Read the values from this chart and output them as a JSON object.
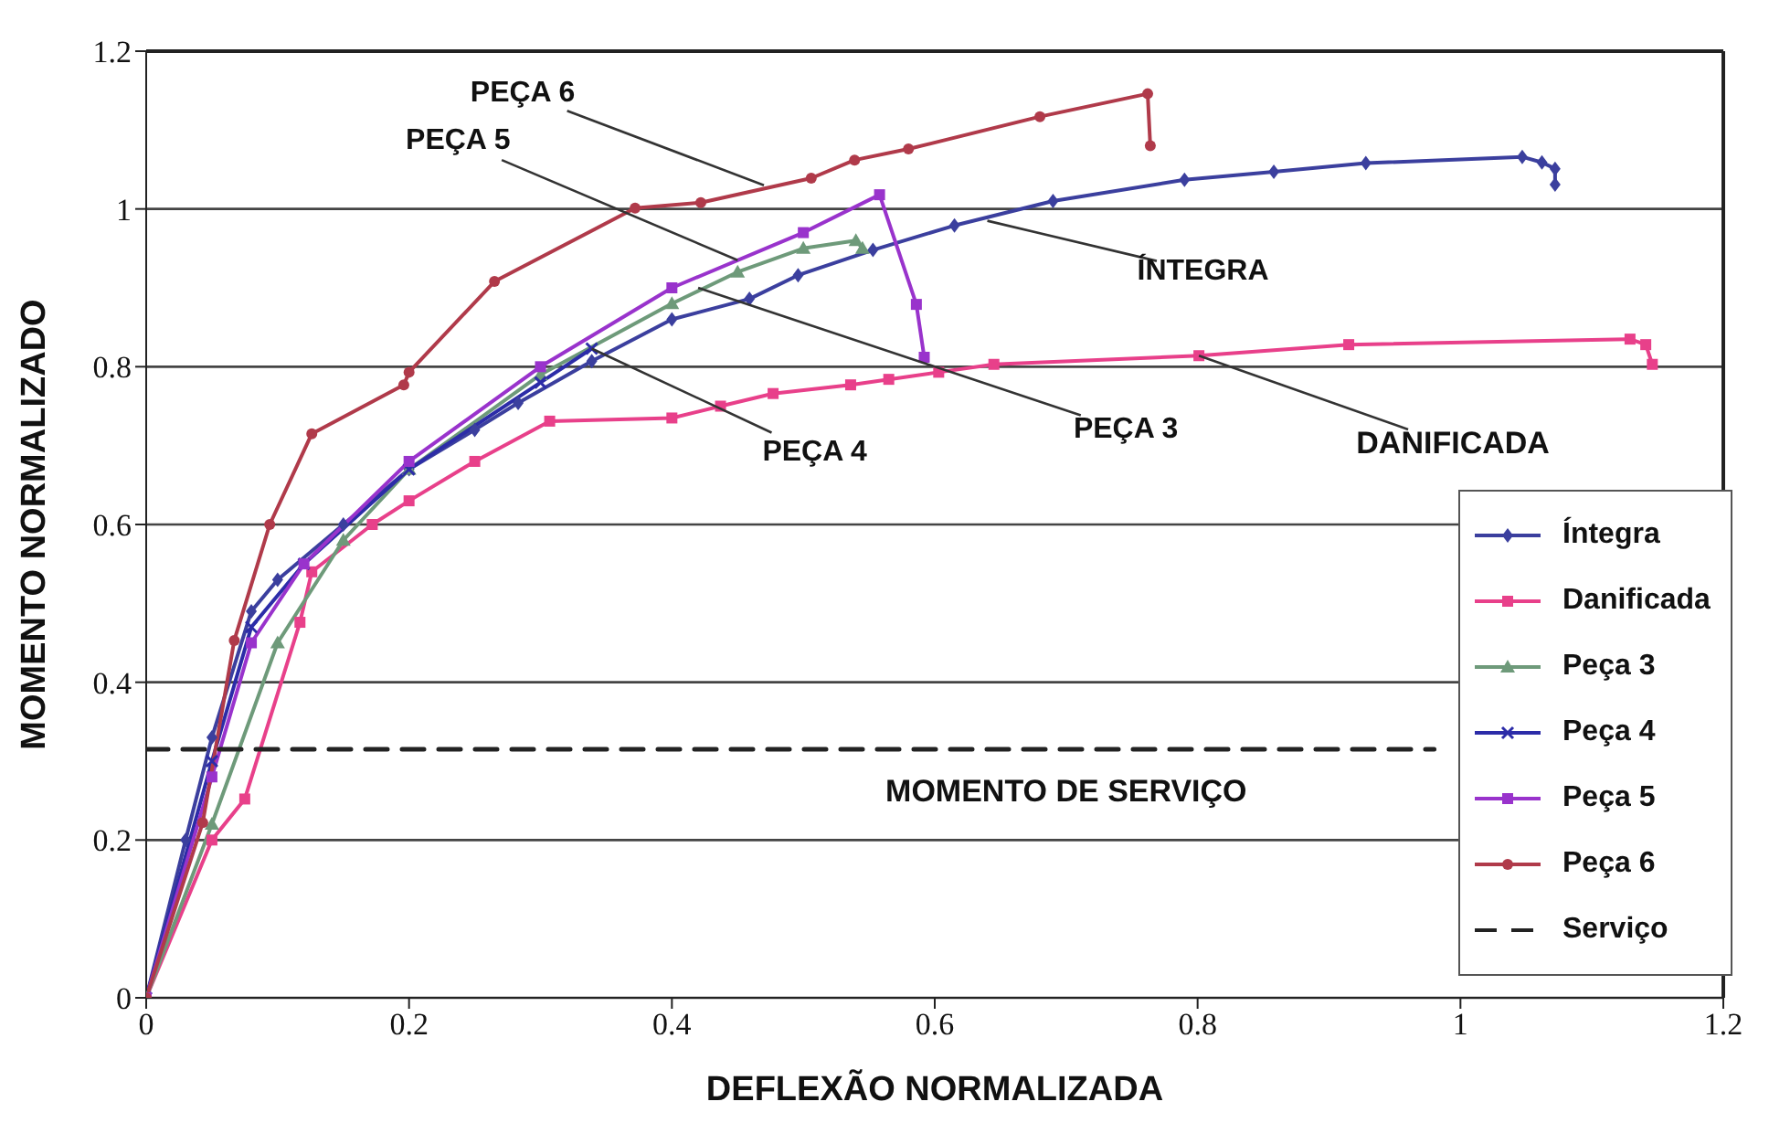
{
  "chart_data": {
    "type": "line",
    "xlabel": "DEFLEXÃO NORMALIZADA",
    "ylabel": "MOMENTO NORMALIZADO",
    "xlim": [
      0,
      1.2
    ],
    "xticks": [
      0,
      0.2,
      0.4,
      0.6,
      0.8,
      1,
      1.2
    ],
    "ylim": [
      0,
      1.2
    ],
    "yticks": [
      0,
      0.2,
      0.4,
      0.6,
      0.8,
      1,
      1.2
    ],
    "grid": "y",
    "legend": "bottom right",
    "series": [
      {
        "name": "Íntegra",
        "color": "#3b3f9e",
        "marker": "diamond",
        "x": [
          0,
          0.03,
          0.05,
          0.08,
          0.1,
          0.15,
          0.2,
          0.25,
          0.283,
          0.339,
          0.4,
          0.459,
          0.496,
          0.553,
          0.615,
          0.69,
          0.79,
          0.858,
          0.928,
          1.047,
          1.062,
          1.072,
          1.072
        ],
        "values": [
          0,
          0.2,
          0.33,
          0.49,
          0.53,
          0.6,
          0.67,
          0.72,
          0.754,
          0.807,
          0.86,
          0.886,
          0.916,
          0.948,
          0.979,
          1.01,
          1.037,
          1.047,
          1.058,
          1.066,
          1.059,
          1.051,
          1.031
        ]
      },
      {
        "name": "Danificada",
        "color": "#e8408a",
        "marker": "square",
        "x": [
          0,
          0.05,
          0.075,
          0.117,
          0.126,
          0.172,
          0.2,
          0.25,
          0.307,
          0.4,
          0.437,
          0.477,
          0.536,
          0.565,
          0.603,
          0.645,
          0.801,
          0.915,
          1.129,
          1.141,
          1.146
        ],
        "values": [
          0,
          0.2,
          0.252,
          0.476,
          0.54,
          0.6,
          0.63,
          0.68,
          0.731,
          0.735,
          0.75,
          0.766,
          0.777,
          0.784,
          0.793,
          0.803,
          0.814,
          0.828,
          0.835,
          0.828,
          0.803
        ]
      },
      {
        "name": "Peça 3",
        "color": "#6e9a7a",
        "marker": "triangle",
        "x": [
          0,
          0.05,
          0.1,
          0.15,
          0.2,
          0.3,
          0.4,
          0.45,
          0.5,
          0.54,
          0.545
        ],
        "values": [
          0,
          0.22,
          0.45,
          0.58,
          0.67,
          0.79,
          0.88,
          0.92,
          0.95,
          0.96,
          0.95
        ]
      },
      {
        "name": "Peça 4",
        "color": "#2c2ca8",
        "marker": "cross",
        "x": [
          0,
          0.05,
          0.08,
          0.12,
          0.2,
          0.3,
          0.339
        ],
        "values": [
          0,
          0.3,
          0.47,
          0.55,
          0.67,
          0.78,
          0.823
        ]
      },
      {
        "name": "Peça 5",
        "color": "#9933cc",
        "marker": "square",
        "x": [
          0,
          0.05,
          0.08,
          0.12,
          0.2,
          0.3,
          0.4,
          0.5,
          0.558,
          0.586,
          0.592
        ],
        "values": [
          0,
          0.28,
          0.45,
          0.55,
          0.68,
          0.8,
          0.9,
          0.97,
          1.018,
          0.879,
          0.812
        ]
      },
      {
        "name": "Peça 6",
        "color": "#b03a4a",
        "marker": "circle",
        "x": [
          0,
          0.043,
          0.067,
          0.094,
          0.126,
          0.196,
          0.2,
          0.265,
          0.372,
          0.422,
          0.506,
          0.539,
          0.58,
          0.68,
          0.762,
          0.764
        ],
        "values": [
          0,
          0.222,
          0.453,
          0.6,
          0.715,
          0.777,
          0.793,
          0.908,
          1.001,
          1.008,
          1.039,
          1.062,
          1.076,
          1.117,
          1.146,
          1.08
        ]
      },
      {
        "name": "Serviço",
        "color": "#222222",
        "marker": "none",
        "line_style": "dashed",
        "x": [
          0,
          0.98
        ],
        "values": [
          0.315,
          0.315
        ]
      }
    ],
    "annotations": [
      {
        "text": "PEÇA 6",
        "x": 0.47,
        "y": 1.03
      },
      {
        "text": "PEÇA 5",
        "x": 0.45,
        "y": 0.935
      },
      {
        "text": "ÍNTEGRA",
        "x": 0.64,
        "y": 0.985
      },
      {
        "text": "PEÇA 4",
        "x": 0.339,
        "y": 0.823
      },
      {
        "text": "PEÇA 3",
        "x": 0.42,
        "y": 0.9
      },
      {
        "text": "DANIFICADA",
        "x": 0.801,
        "y": 0.814
      },
      {
        "text": "MOMENTO DE SERVIÇO",
        "x": 0.7,
        "y": 0.315
      }
    ]
  }
}
